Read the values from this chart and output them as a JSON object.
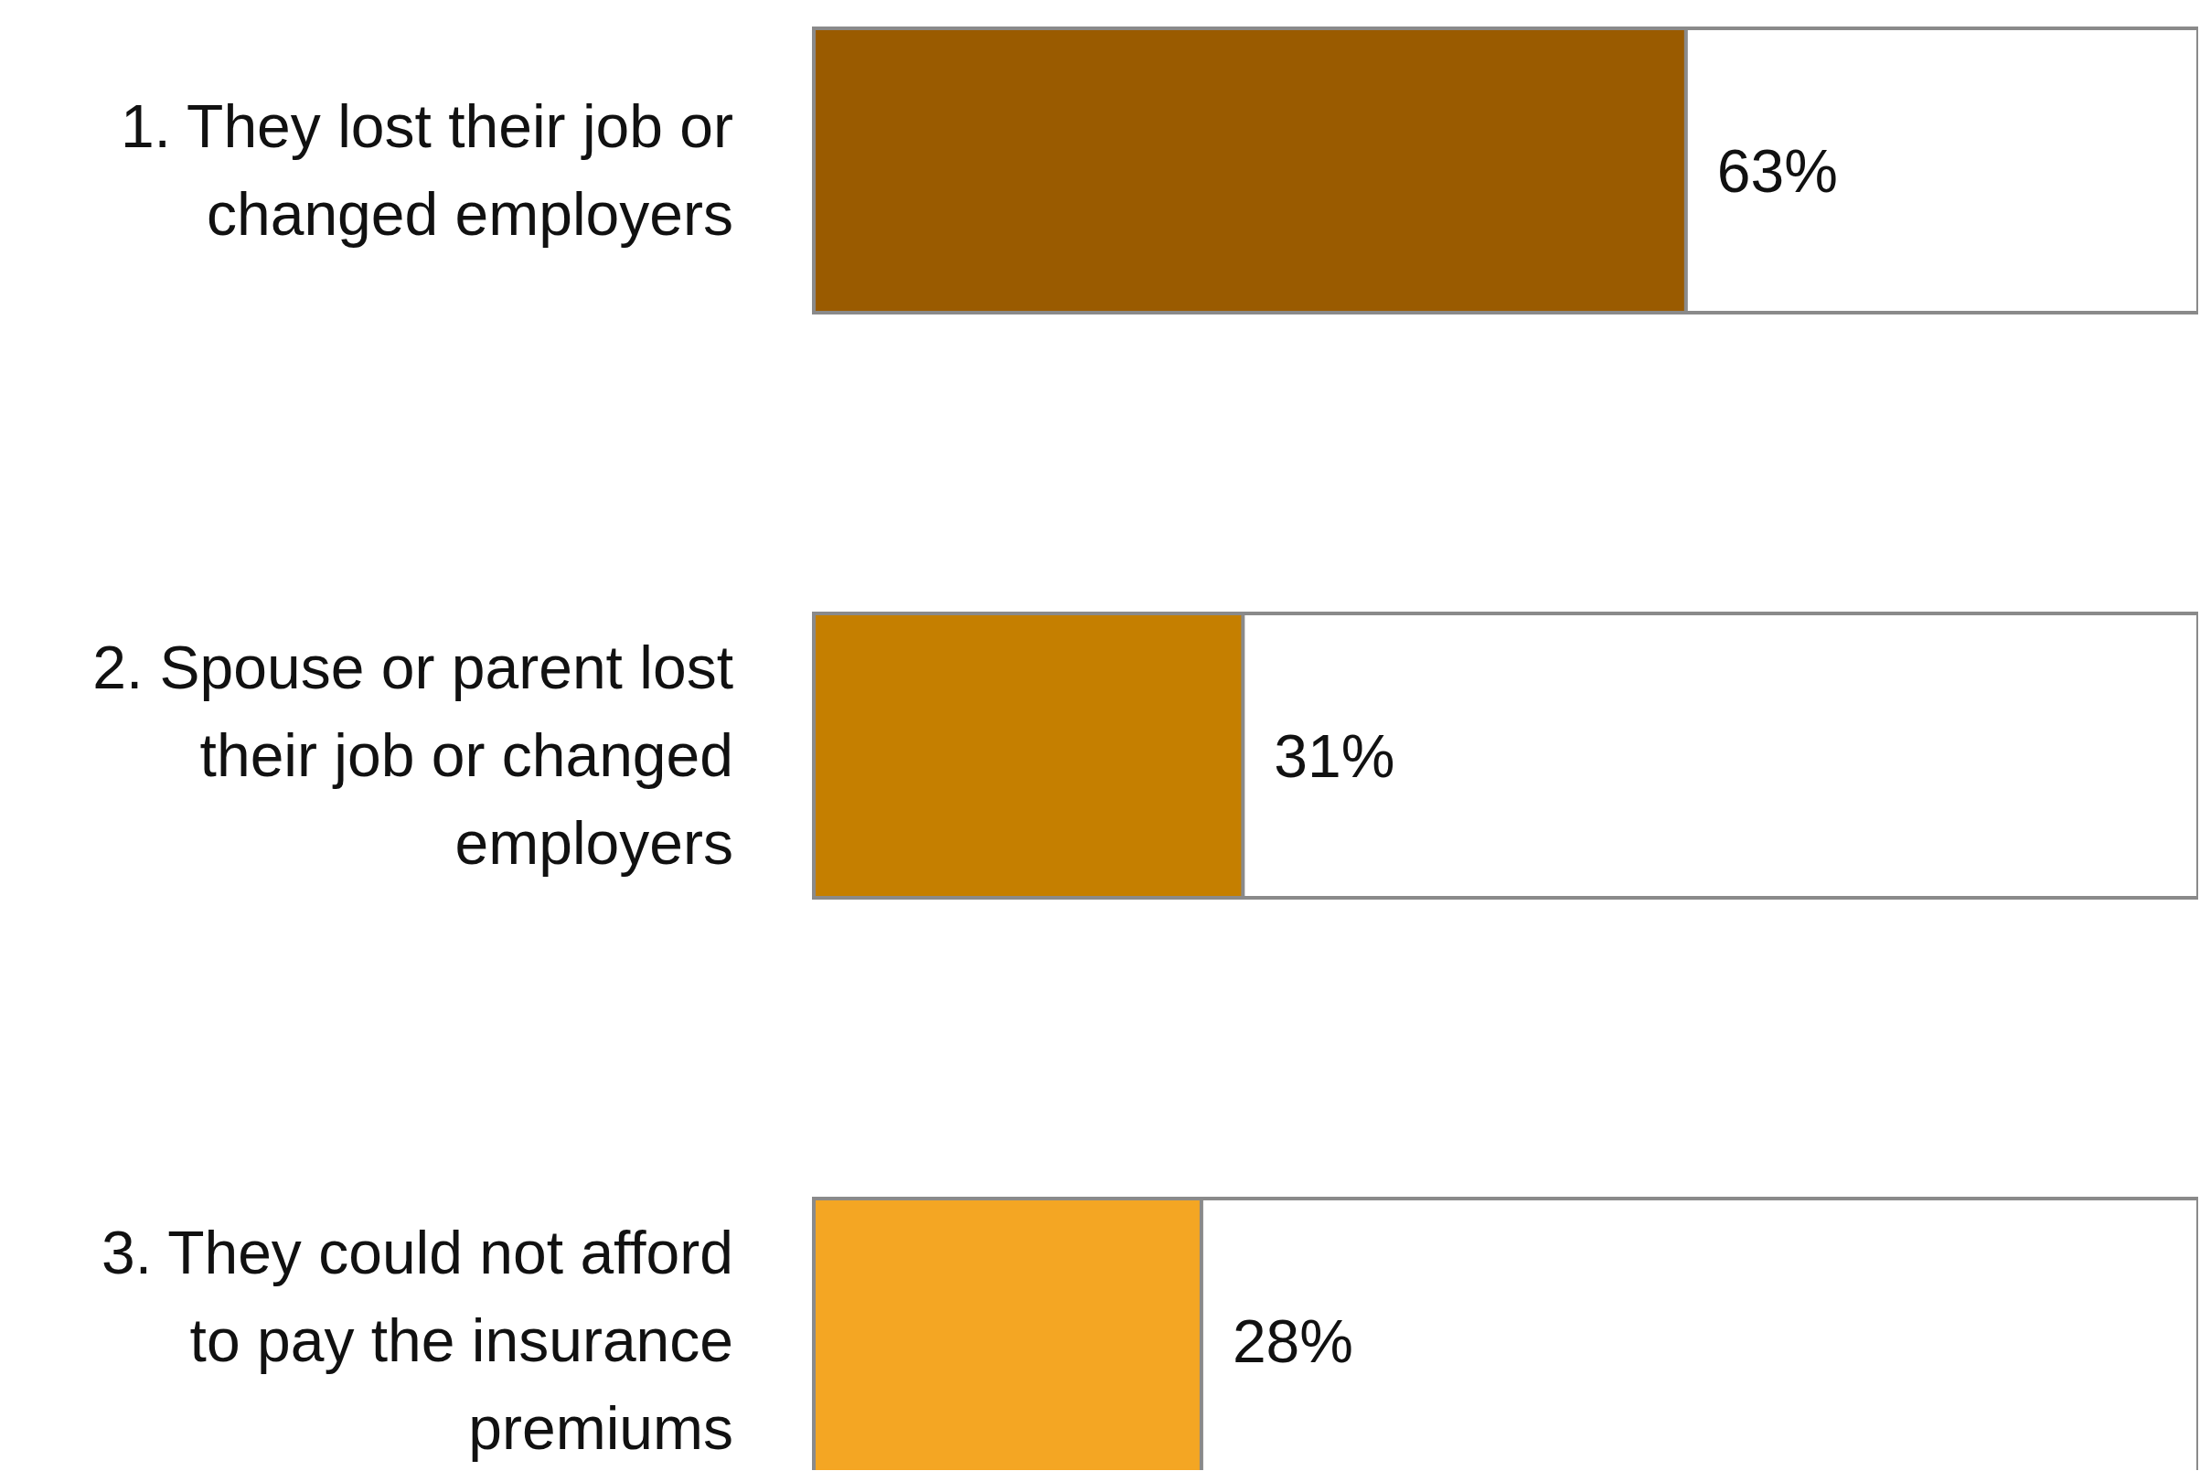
{
  "chart_data": {
    "type": "bar",
    "orientation": "horizontal",
    "categories": [
      "1. They lost their job or changed employers",
      "2. Spouse or parent lost their job or changed employers",
      "3. They could not afford to pay the insurance premiums"
    ],
    "values": [
      63,
      31,
      28
    ],
    "colors": [
      "#9a5b00",
      "#c57f00",
      "#f4a623"
    ],
    "value_labels": [
      "63%",
      "31%",
      "28%"
    ],
    "xlim": [
      0,
      100
    ],
    "tick_labels": false
  }
}
